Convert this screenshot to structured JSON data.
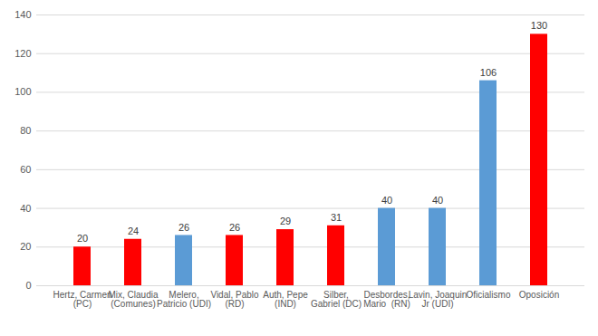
{
  "chart_data": {
    "type": "bar",
    "categories": [
      "Hertz, Carmen (PC)",
      "Mix, Claudia (Comunes)",
      "Melero, Patricio (UDI)",
      "Vidal, Pablo (RD)",
      "Auth, Pepe (IND)",
      "Silber, Gabriel (DC)",
      "Desbordes, Mario  (RN)",
      "Lavin, Joaquin Jr (UDI)",
      "Oficialismo",
      "Oposición"
    ],
    "values": [
      20,
      24,
      26,
      26,
      29,
      31,
      40,
      40,
      106,
      130
    ],
    "colors": [
      "#ff0000",
      "#ff0000",
      "#5b9bd5",
      "#ff0000",
      "#ff0000",
      "#ff0000",
      "#5b9bd5",
      "#5b9bd5",
      "#5b9bd5",
      "#ff0000"
    ],
    "ylim": [
      0,
      140
    ],
    "yticks": [
      0,
      20,
      40,
      60,
      80,
      100,
      120,
      140
    ],
    "grid": true,
    "data_labels": true
  }
}
